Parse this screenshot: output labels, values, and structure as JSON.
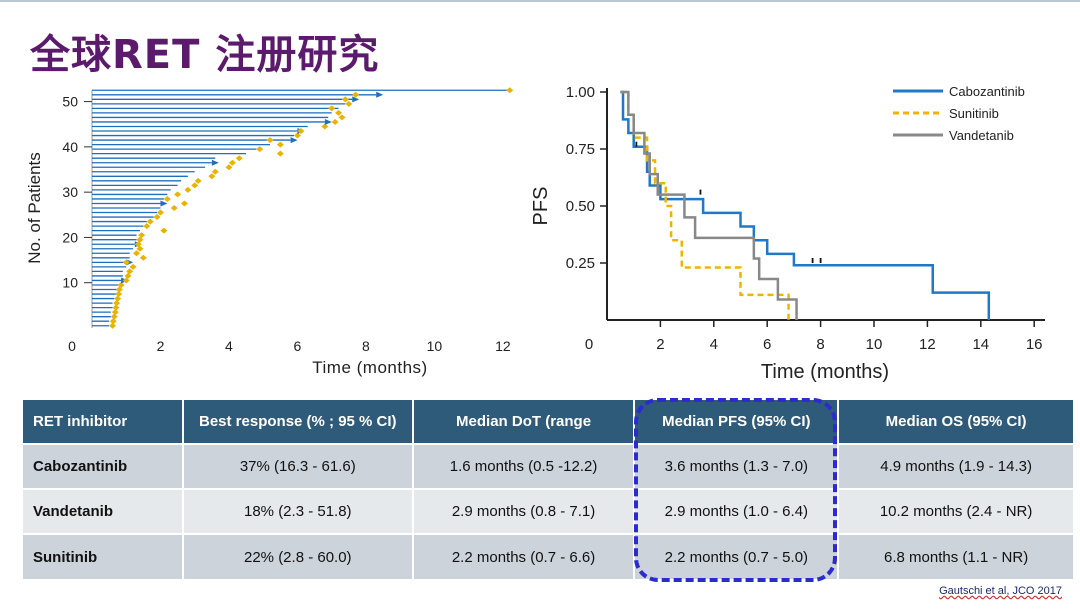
{
  "slide": {
    "title": "全球RET 注册研究"
  },
  "chart_data": [
    {
      "type": "bar",
      "orientation": "horizontal",
      "description_of_marks": "swimmer plot: each bar is one patient's duration of therapy; diamonds mark response/event",
      "xlabel": "Time (months)",
      "ylabel": "No. of Patients",
      "xlim": [
        0,
        12
      ],
      "ylim": [
        0,
        53
      ],
      "x_ticks": [
        "0",
        "2",
        "4",
        "6",
        "8",
        "10",
        "12"
      ],
      "y_ticks": [
        "10",
        "20",
        "30",
        "40",
        "50"
      ],
      "colors": {
        "bar": "#1f6fbf",
        "diamond": "#e8b400"
      },
      "durations": [
        0.5,
        0.5,
        0.55,
        0.55,
        0.6,
        0.6,
        0.65,
        0.7,
        0.75,
        0.8,
        0.85,
        0.9,
        0.9,
        1.0,
        1.0,
        1.1,
        1.1,
        1.2,
        1.25,
        1.3,
        1.3,
        1.4,
        1.5,
        1.6,
        1.8,
        1.9,
        2.0,
        2.0,
        2.1,
        2.2,
        2.3,
        2.5,
        2.6,
        2.8,
        3.0,
        3.3,
        3.5,
        3.6,
        4.5,
        4.8,
        5.2,
        5.8,
        5.9,
        6.0,
        6.3,
        6.8,
        6.9,
        7.0,
        7.2,
        7.4,
        7.6,
        8.3,
        12.2
      ],
      "arrows": [
        10,
        14,
        18,
        27,
        36,
        41,
        43,
        45,
        50,
        51
      ],
      "diamond_times": [
        0.6,
        0.62,
        0.65,
        0.68,
        0.7,
        0.72,
        0.75,
        0.78,
        0.8,
        0.85,
        1.0,
        1.05,
        1.1,
        1.2,
        1.0,
        1.5,
        1.3,
        1.4,
        1.35,
        1.4,
        1.45,
        2.1,
        1.6,
        1.7,
        1.9,
        2.0,
        2.4,
        2.7,
        2.2,
        2.5,
        2.8,
        3.0,
        3.1,
        3.5,
        3.6,
        4.0,
        4.1,
        4.3,
        5.5,
        4.9,
        5.5,
        5.2,
        6.0,
        6.1,
        6.8,
        7.1,
        7.3,
        7.2,
        7.0,
        7.5,
        7.4,
        7.7,
        12.2
      ]
    },
    {
      "type": "line",
      "subtype": "step (Kaplan-Meier)",
      "xlabel": "Time (months)",
      "ylabel": "PFS",
      "xlim": [
        0,
        16
      ],
      "ylim": [
        0,
        1
      ],
      "x_ticks": [
        "0",
        "2",
        "4",
        "6",
        "8",
        "10",
        "12",
        "14",
        "16"
      ],
      "y_ticks": [
        "0.25",
        "0.50",
        "0.75",
        "1.00"
      ],
      "legend_position": "top-right",
      "series": [
        {
          "name": "Cabozantinib",
          "color": "#1f78c8",
          "dashed": false,
          "x": [
            0.5,
            0.6,
            0.8,
            1.0,
            1.5,
            1.6,
            2.0,
            3.6,
            5.0,
            5.5,
            6.0,
            7.0,
            12.2,
            14.3
          ],
          "y": [
            1.0,
            0.88,
            0.82,
            0.76,
            0.65,
            0.59,
            0.53,
            0.47,
            0.41,
            0.35,
            0.29,
            0.24,
            0.12,
            0.0
          ]
        },
        {
          "name": "Sunitinib",
          "color": "#f0b400",
          "dashed": true,
          "x": [
            0.5,
            0.8,
            1.0,
            1.5,
            1.8,
            2.2,
            2.4,
            2.8,
            5.0,
            6.8
          ],
          "y": [
            1.0,
            0.9,
            0.8,
            0.7,
            0.6,
            0.5,
            0.35,
            0.23,
            0.11,
            0.0
          ]
        },
        {
          "name": "Vandetanib",
          "color": "#888888",
          "dashed": false,
          "x": [
            0.5,
            0.8,
            1.0,
            1.4,
            1.6,
            1.9,
            2.9,
            3.3,
            5.5,
            5.7,
            6.4,
            7.1
          ],
          "y": [
            1.0,
            0.9,
            0.82,
            0.73,
            0.64,
            0.55,
            0.45,
            0.36,
            0.27,
            0.18,
            0.09,
            0.0
          ]
        }
      ],
      "censor_marks": [
        {
          "x": 3.5,
          "y": 0.55
        },
        {
          "x": 7.7,
          "y": 0.25
        },
        {
          "x": 8.0,
          "y": 0.25
        },
        {
          "x": 1.1,
          "y": 0.76
        }
      ]
    }
  ],
  "table": {
    "headers": [
      "RET inhibitor",
      "Best response (% ; 95 % CI)",
      "Median DoT (range",
      "Median PFS (95% CI)",
      "Median OS (95% CI)"
    ],
    "rows": [
      [
        "Cabozantinib",
        "37% (16.3 - 61.6)",
        "1.6 months (0.5 -12.2)",
        "3.6 months (1.3 - 7.0)",
        "4.9 months (1.9 - 14.3)"
      ],
      [
        "Vandetanib",
        "18% (2.3 - 51.8)",
        "2.9 months (0.8 - 7.1)",
        "2.9 months (1.0 - 6.4)",
        "10.2 months (2.4 - NR)"
      ],
      [
        "Sunitinib",
        "22% (2.8 - 60.0)",
        "2.2 months (0.7 - 6.6)",
        "2.2 months (0.7 - 5.0)",
        "6.8 months (1.1 - NR)"
      ]
    ]
  },
  "citation": "Gautschi et al, JCO 2017"
}
